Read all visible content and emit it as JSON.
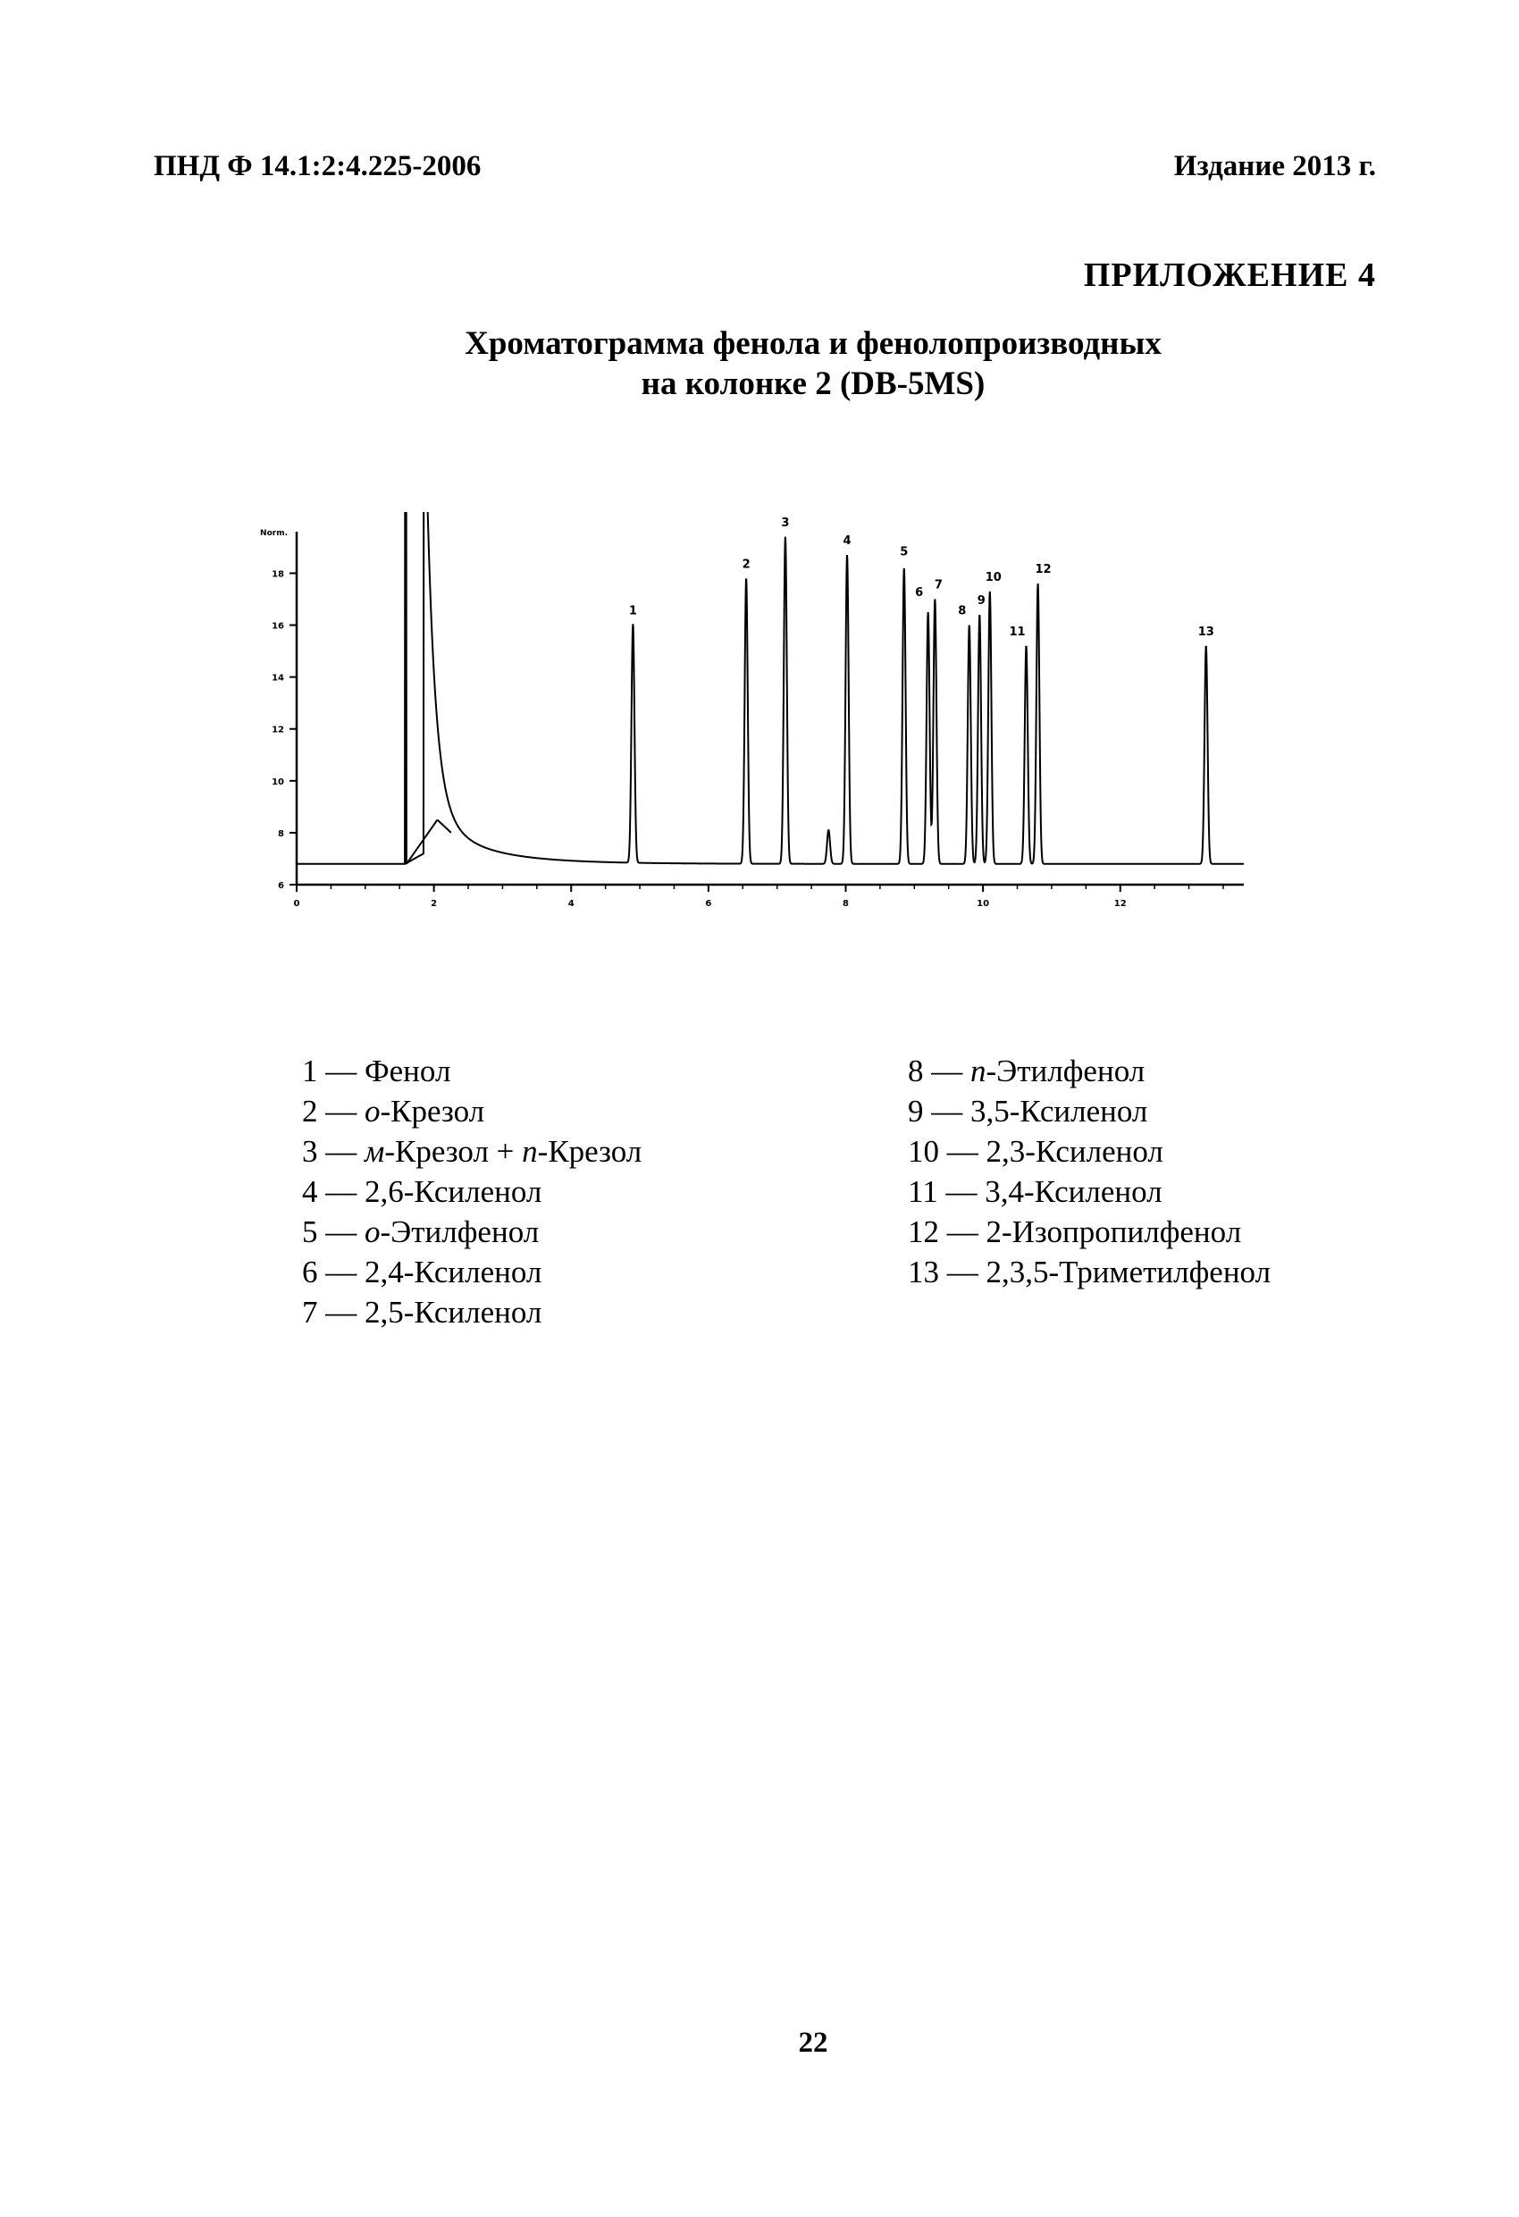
{
  "header": {
    "doc_code": "ПНД Ф 14.1:2:4.225-2006",
    "edition": "Издание 2013 г."
  },
  "appendix": "ПРИЛОЖЕНИЕ 4",
  "title": {
    "line1": "Хроматограмма фенола и фенолопроизводных",
    "line2": "на колонке 2 (DB-5MS)"
  },
  "chart_data": {
    "type": "line",
    "title": "",
    "xlabel": "",
    "ylabel": "Norm.",
    "xlim": [
      0,
      13.8
    ],
    "ylim": [
      6,
      19.6
    ],
    "x_ticks": [
      "0",
      "2",
      "4",
      "6",
      "8",
      "10",
      "12"
    ],
    "y_ticks": [
      "6",
      "8",
      "10",
      "12",
      "14",
      "16",
      "18"
    ],
    "baseline": 6.8,
    "solvent_front": {
      "rise_x": 1.58,
      "peak_x": 1.85,
      "tail_y": 15.8
    },
    "peaks": [
      {
        "label": "1",
        "rt": 4.9,
        "height": 16.0
      },
      {
        "label": "2",
        "rt": 6.55,
        "height": 17.8
      },
      {
        "label": "3",
        "rt": 7.12,
        "height": 19.4
      },
      {
        "label": "",
        "rt": 7.75,
        "height": 8.1
      },
      {
        "label": "4",
        "rt": 8.02,
        "height": 18.7
      },
      {
        "label": "5",
        "rt": 8.85,
        "height": 18.2
      },
      {
        "label": "6",
        "rt": 9.2,
        "height": 16.5
      },
      {
        "label": "7",
        "rt": 9.3,
        "height": 17.0
      },
      {
        "label": "8",
        "rt": 9.8,
        "height": 16.0
      },
      {
        "label": "9",
        "rt": 9.95,
        "height": 16.4
      },
      {
        "label": "10",
        "rt": 10.1,
        "height": 17.3
      },
      {
        "label": "11",
        "rt": 10.63,
        "height": 15.2
      },
      {
        "label": "12",
        "rt": 10.8,
        "height": 17.6
      },
      {
        "label": "13",
        "rt": 13.25,
        "height": 15.2
      }
    ]
  },
  "legend": {
    "left": [
      {
        "num": "1",
        "pre": "",
        "ital1": "",
        "mid": "Фенол",
        "ital2": "",
        "post": ""
      },
      {
        "num": "2",
        "pre": "",
        "ital1": "о",
        "mid": "-Крезол",
        "ital2": "",
        "post": ""
      },
      {
        "num": "3",
        "pre": "",
        "ital1": "м",
        "mid": "-Крезол + ",
        "ital2": "п",
        "post": "-Крезол"
      },
      {
        "num": "4",
        "pre": "",
        "ital1": "",
        "mid": "2,6-Ксиленол",
        "ital2": "",
        "post": ""
      },
      {
        "num": "5",
        "pre": "",
        "ital1": "о",
        "mid": "-Этилфенол",
        "ital2": "",
        "post": ""
      },
      {
        "num": "6",
        "pre": "",
        "ital1": "",
        "mid": "2,4-Ксиленол",
        "ital2": "",
        "post": ""
      },
      {
        "num": "7",
        "pre": "",
        "ital1": "",
        "mid": "2,5-Ксиленол",
        "ital2": "",
        "post": ""
      }
    ],
    "right": [
      {
        "num": "8",
        "pre": "",
        "ital1": "п",
        "mid": "-Этилфенол",
        "ital2": "",
        "post": ""
      },
      {
        "num": "9",
        "pre": "",
        "ital1": "",
        "mid": "3,5-Ксиленол",
        "ital2": "",
        "post": ""
      },
      {
        "num": "10",
        "pre": "",
        "ital1": "",
        "mid": "2,3-Ксиленол",
        "ital2": "",
        "post": ""
      },
      {
        "num": "11",
        "pre": "",
        "ital1": "",
        "mid": "3,4-Ксиленол",
        "ital2": "",
        "post": ""
      },
      {
        "num": "12",
        "pre": "",
        "ital1": "",
        "mid": "2-Изопропилфенол",
        "ital2": "",
        "post": ""
      },
      {
        "num": "13",
        "pre": "",
        "ital1": "",
        "mid": "2,3,5-Триметилфенол",
        "ital2": "",
        "post": ""
      }
    ]
  },
  "page_number": "22"
}
